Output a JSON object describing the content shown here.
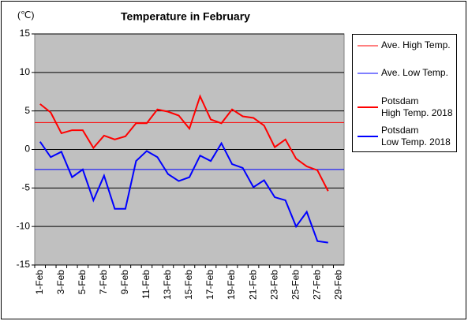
{
  "chart_data": {
    "type": "line",
    "title": "Temperature in February",
    "y_label": "(℃)",
    "categories": [
      "1-Feb",
      null,
      "3-Feb",
      null,
      "5-Feb",
      null,
      "7-Feb",
      null,
      "9-Feb",
      null,
      "11-Feb",
      null,
      "13-Feb",
      null,
      "15-Feb",
      null,
      "17-Feb",
      null,
      "19-Feb",
      null,
      "21-Feb",
      null,
      "23-Feb",
      null,
      "25-Feb",
      null,
      "27-Feb",
      null,
      "29-Feb"
    ],
    "series": [
      {
        "name": "Ave. High Temp.",
        "color": "#ff0000",
        "value": 3.5
      },
      {
        "name": "Ave. Low Temp.",
        "color": "#0000ff",
        "value": -2.6
      },
      {
        "name": "Potsdam\nHigh Temp. 2018",
        "color": "#ff0000",
        "values": [
          5.9,
          4.8,
          2.1,
          2.5,
          2.5,
          0.2,
          1.8,
          1.3,
          1.7,
          3.4,
          3.4,
          5.2,
          4.9,
          4.4,
          2.7,
          6.9,
          3.9,
          3.4,
          5.2,
          4.3,
          4.1,
          3.1,
          0.3,
          1.3,
          -1.2,
          -2.2,
          -2.7,
          -5.4,
          null
        ]
      },
      {
        "name": "Potsdam\nLow Temp. 2018",
        "color": "#0000ff",
        "values": [
          1.0,
          -1.0,
          -0.3,
          -3.6,
          -2.6,
          -6.6,
          -3.4,
          -7.7,
          -7.7,
          -1.5,
          -0.2,
          -1.0,
          -3.2,
          -4.1,
          -3.6,
          -0.8,
          -1.5,
          0.8,
          -1.9,
          -2.4,
          -4.9,
          -4.0,
          -6.2,
          -6.6,
          -10.0,
          -8.1,
          -11.9,
          -12.1,
          null
        ]
      }
    ],
    "ylim": [
      -15,
      15
    ],
    "yticks": [
      -15,
      -10,
      -5,
      0,
      5,
      10,
      15
    ],
    "grid": true,
    "plot_background": "#c0c0c0",
    "legend": "right"
  }
}
